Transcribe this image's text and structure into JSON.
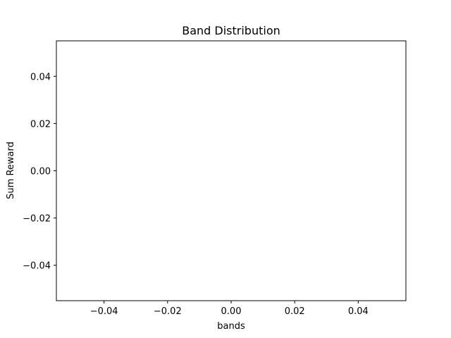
{
  "chart_data": {
    "type": "bar",
    "title": "Band Distribution",
    "xlabel": "bands",
    "ylabel": "Sum Reward",
    "categories": [],
    "values": [],
    "xlim": [
      -0.055,
      0.055
    ],
    "ylim": [
      -0.055,
      0.055
    ],
    "x_ticks": [
      -0.04,
      -0.02,
      0.0,
      0.02,
      0.04
    ],
    "y_ticks": [
      -0.04,
      -0.02,
      0.0,
      0.02,
      0.04
    ],
    "x_tick_labels": [
      "−0.04",
      "−0.02",
      "0.00",
      "0.02",
      "0.04"
    ],
    "y_tick_labels": [
      "−0.04",
      "−0.02",
      "0.00",
      "0.02",
      "0.04"
    ],
    "grid": false,
    "legend": "none"
  }
}
